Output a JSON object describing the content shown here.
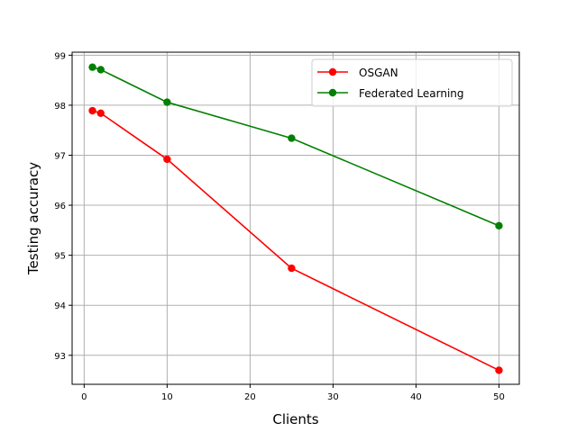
{
  "chart_data": {
    "type": "line",
    "title": "",
    "xlabel": "Clients",
    "ylabel": "Testing accuracy",
    "xlim": [
      -1.45,
      52.45
    ],
    "ylim": [
      92.42,
      99.06
    ],
    "xticks": [
      0,
      10,
      20,
      30,
      40,
      50
    ],
    "yticks": [
      93,
      94,
      95,
      96,
      97,
      98,
      99
    ],
    "grid": true,
    "legend_position": "top-right",
    "series": [
      {
        "name": "OSGAN",
        "color": "#ff0000",
        "marker": "circle",
        "x": [
          1,
          2,
          10,
          25,
          50
        ],
        "y": [
          97.89,
          97.84,
          96.92,
          94.74,
          92.7
        ]
      },
      {
        "name": "Federated Learning",
        "color": "#008000",
        "marker": "circle",
        "x": [
          1,
          2,
          10,
          25,
          50
        ],
        "y": [
          98.76,
          98.71,
          98.06,
          97.34,
          95.59
        ]
      }
    ]
  }
}
